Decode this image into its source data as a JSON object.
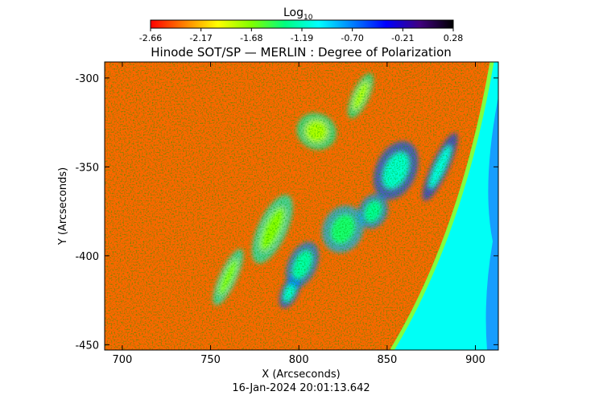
{
  "colorbar": {
    "label": "Log",
    "label_sub": "10",
    "ticks": [
      "-2.66",
      "-2.17",
      "-1.68",
      "-1.19",
      "-0.70",
      "-0.21",
      "0.28"
    ],
    "range": [
      -2.66,
      0.28
    ],
    "colormap": [
      "#ff0000",
      "#ff8000",
      "#ffff00",
      "#80ff00",
      "#00ff80",
      "#00ffff",
      "#0080ff",
      "#0000ff",
      "#400080",
      "#000000"
    ]
  },
  "chart_data": {
    "type": "heatmap",
    "title": "Hinode SOT/SP — MERLIN : Degree of Polarization",
    "xlabel": "X (Arcseconds)",
    "ylabel": "Y (Arcseconds)",
    "xlim": [
      690,
      913
    ],
    "ylim": [
      -453,
      -291
    ],
    "x_ticks": [
      "700",
      "750",
      "800",
      "850",
      "900"
    ],
    "y_ticks": [
      "-300",
      "-350",
      "-400",
      "-450"
    ],
    "x_tick_values": [
      700,
      750,
      800,
      850,
      900
    ],
    "y_tick_values": [
      -300,
      -350,
      -400,
      -450
    ],
    "value_label": "Log10 degree of polarization",
    "background_value": -2.4,
    "limb_value": -1.05,
    "features": [
      {
        "x": 795,
        "y": -420,
        "value": -1.15
      },
      {
        "x": 802,
        "y": -405,
        "value": -1.25
      },
      {
        "x": 855,
        "y": -352,
        "value": -1.15
      },
      {
        "x": 880,
        "y": -350,
        "value": -1.1
      },
      {
        "x": 842,
        "y": -375,
        "value": -1.3
      },
      {
        "x": 825,
        "y": -385,
        "value": -1.4
      },
      {
        "x": 760,
        "y": -412,
        "value": -1.7
      },
      {
        "x": 785,
        "y": -385,
        "value": -1.7
      },
      {
        "x": 810,
        "y": -330,
        "value": -1.8
      },
      {
        "x": 835,
        "y": -310,
        "value": -1.8
      }
    ]
  },
  "timestamp": "16-Jan-2024 20:01:13.642"
}
